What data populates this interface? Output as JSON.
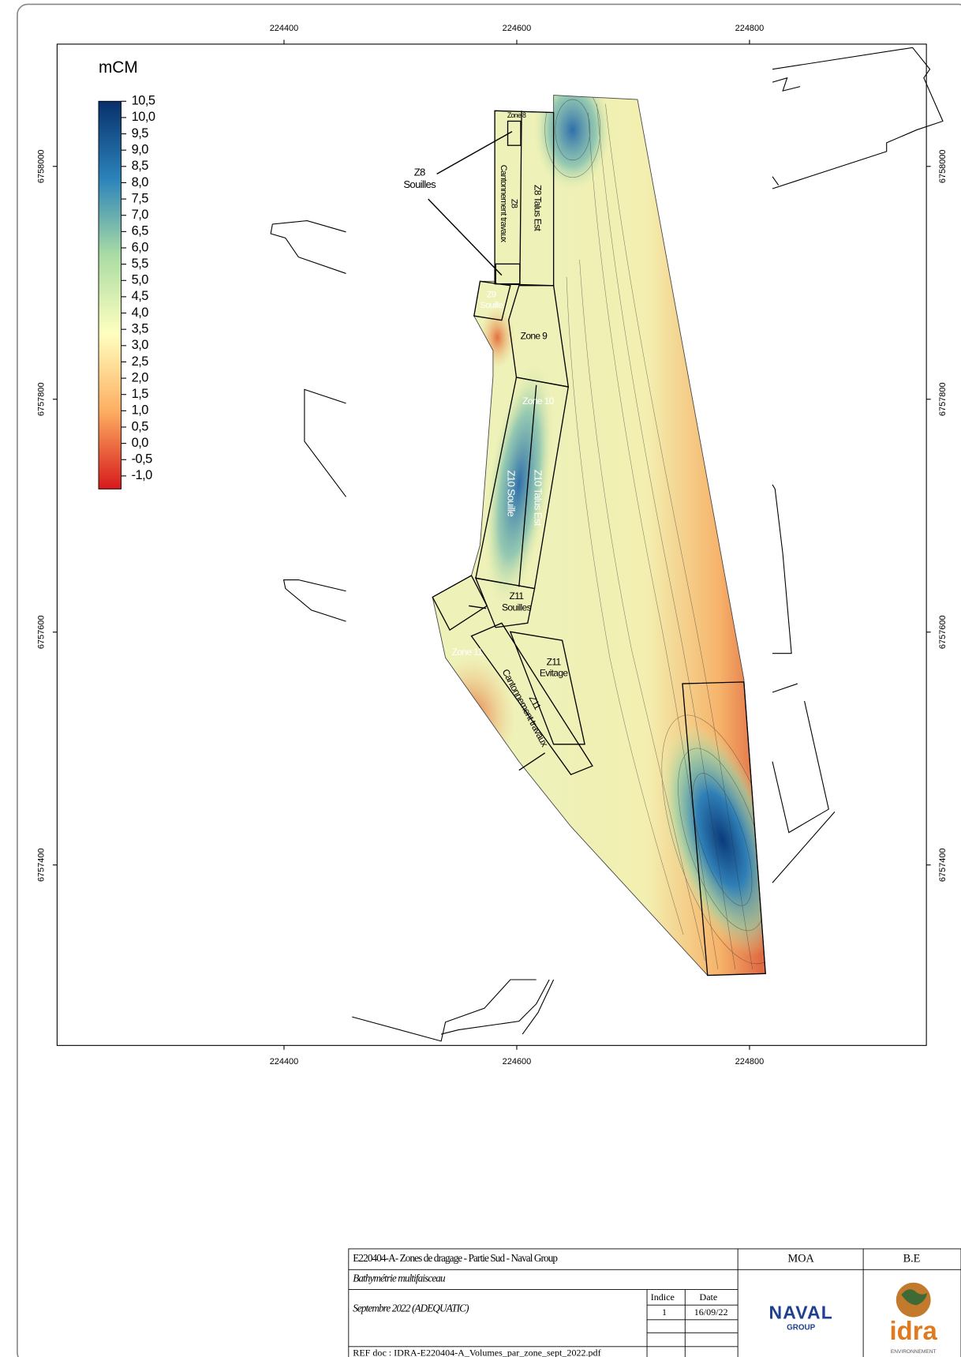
{
  "map": {
    "unit": "mCM",
    "xlim": [
      224205,
      224952
    ],
    "ylim": [
      6757245,
      6758105
    ],
    "xticks": [
      224400,
      224600,
      224800
    ],
    "yticks": [
      6757400,
      6757600,
      6757800,
      6758000
    ],
    "colorbar": {
      "lim": [
        -1.4,
        10.5
      ],
      "colors": [
        "#d7191c",
        "#fdae61",
        "#ffffbf",
        "#abdda4",
        "#2b83ba",
        "#08306b"
      ],
      "ticks": [
        {
          "value": 10.5,
          "label": "10,5"
        },
        {
          "value": 10,
          "label": "10,0"
        },
        {
          "value": 9.5,
          "label": "9,5"
        },
        {
          "value": 9,
          "label": "9,0"
        },
        {
          "value": 8.5,
          "label": "8,5"
        },
        {
          "value": 8,
          "label": "8,0"
        },
        {
          "value": 7.5,
          "label": "7,5"
        },
        {
          "value": 7,
          "label": "7,0"
        },
        {
          "value": 6.5,
          "label": "6,5"
        },
        {
          "value": 6,
          "label": "6,0"
        },
        {
          "value": 5.5,
          "label": "5,5"
        },
        {
          "value": 5,
          "label": "5,0"
        },
        {
          "value": 4.5,
          "label": "4,5"
        },
        {
          "value": 4,
          "label": "4,0"
        },
        {
          "value": 3.5,
          "label": "3,5"
        },
        {
          "value": 3,
          "label": "3,0"
        },
        {
          "value": 2.5,
          "label": "2,5"
        },
        {
          "value": 2,
          "label": "2,0"
        },
        {
          "value": 1.5,
          "label": "1,5"
        },
        {
          "value": 1,
          "label": "1,0"
        },
        {
          "value": 0.5,
          "label": "0,5"
        },
        {
          "value": 0,
          "label": "0,0"
        },
        {
          "value": -0.5,
          "label": "-0,5"
        },
        {
          "value": -1,
          "label": "-1,0"
        }
      ]
    },
    "zone_labels": [
      [
        "Z8",
        "Souilles"
      ],
      [
        "Zone 8"
      ],
      [
        "Z8",
        "Cantonnement travaux"
      ],
      [
        "Z8 Talus Est"
      ],
      [
        "Z9",
        "Souille"
      ],
      [
        "Zone 9"
      ],
      [
        "Zone 10"
      ],
      [
        "Z10 Souille"
      ],
      [
        "Z10 Talus Est"
      ],
      [
        "Z11",
        "Souilles"
      ],
      [
        "Zone 11"
      ],
      [
        "Z11",
        "Evitage"
      ],
      [
        "Z11",
        "Cantonnement travaux"
      ]
    ]
  },
  "title_block": {
    "project": "E220404-A- Zones de dragage - Partie Sud - Naval Group",
    "subject": "Bathymétrie multifaisceau",
    "date_line": "Septembre 2022 (ADEQUATIC)",
    "index_header": "Indice",
    "date_header": "Date",
    "index": 1,
    "date": "16/09/22",
    "ref": "REF doc : IDRA-E220404-A_Volumes_par_zone_sept_2022.pdf",
    "moa": "MOA",
    "be": "B.E",
    "moa_logo": [
      "NAVAL",
      "GROUP"
    ],
    "be_logo": [
      "idra",
      "ENVIRONNEMENT"
    ]
  }
}
